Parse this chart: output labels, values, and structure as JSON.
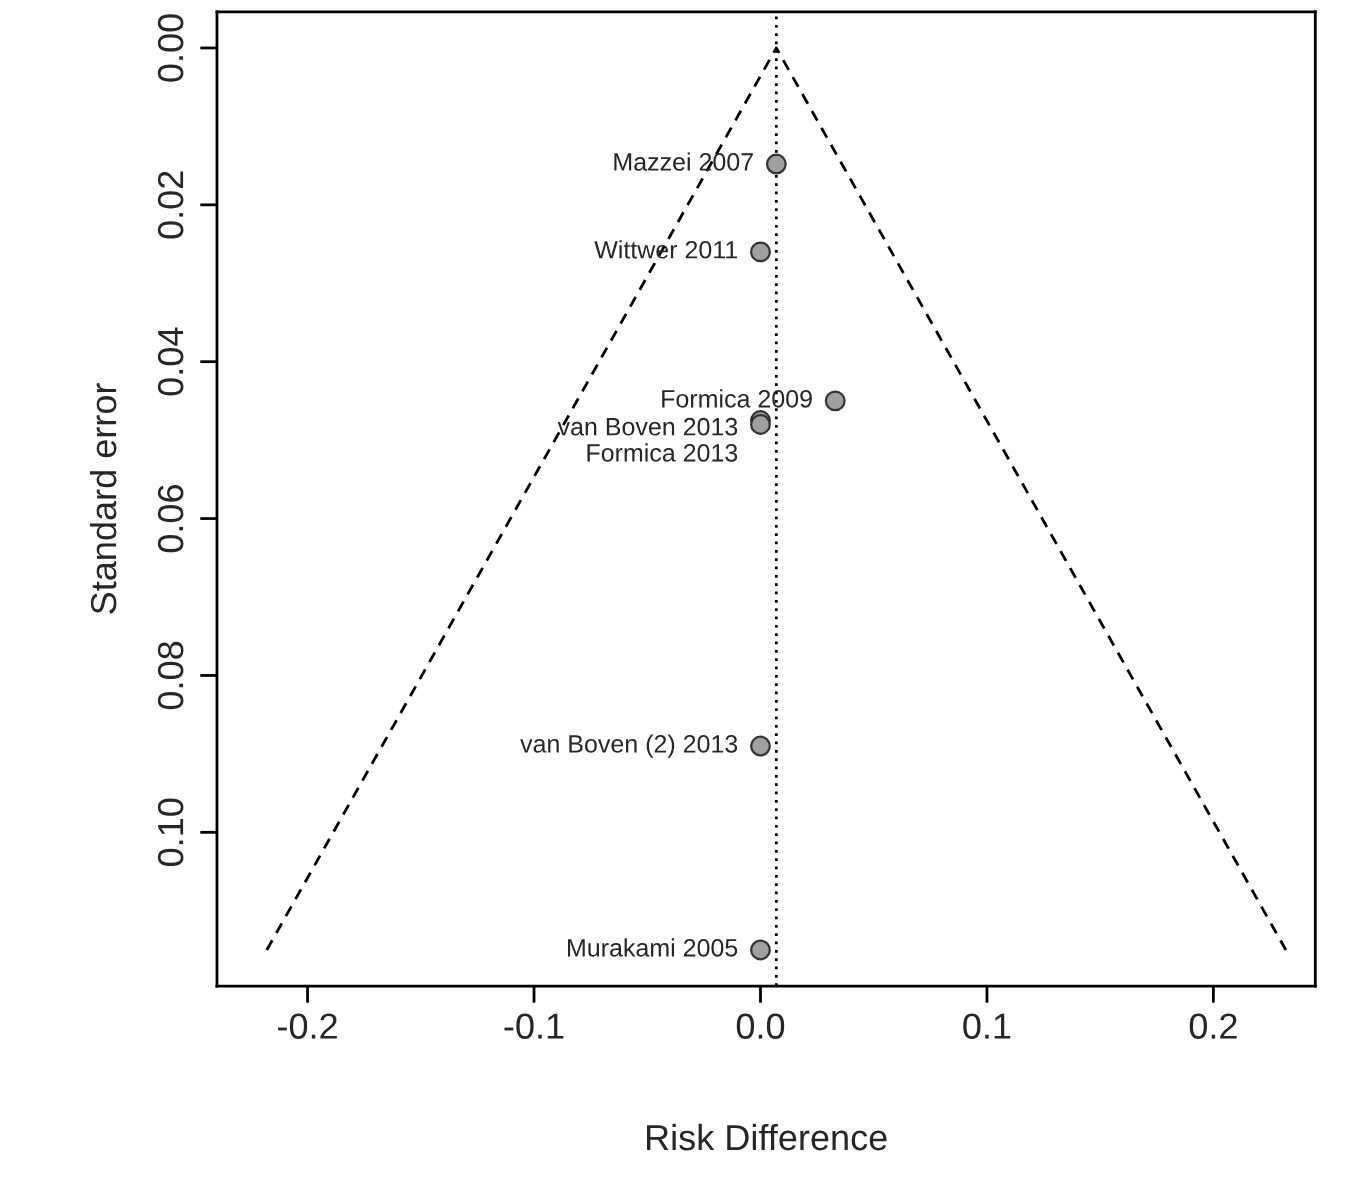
{
  "chart_data": {
    "type": "scatter",
    "xlabel": "Risk Difference",
    "ylabel": "Standard error",
    "series": [
      {
        "color": "#a0a0a0",
        "marker": "circle",
        "x": [
          0.007,
          0.0,
          0.033,
          0.0,
          0.0,
          0.0,
          0.0
        ],
        "values": [
          0.0148,
          0.026,
          0.045,
          0.0475,
          0.048,
          0.089,
          0.115
        ]
      },
      {
        "type": "line",
        "color": "#000000",
        "line_style": "dashed",
        "marker": "none",
        "x": [
          -0.218,
          0.007,
          0.232
        ],
        "values": [
          0.115,
          0.0,
          0.115
        ]
      }
    ],
    "ref_lines": [
      {
        "axis": "x",
        "value": 0.007,
        "line_style": "dotted",
        "color": "#000000"
      }
    ],
    "annotations": [
      {
        "text": "Mazzei 2007",
        "x": 0.007,
        "y": 0.0148
      },
      {
        "text": "Wittwer 2011",
        "x": 0.0,
        "y": 0.026
      },
      {
        "text": "Formica 2009",
        "x": 0.033,
        "y": 0.045
      },
      {
        "text": "van Boven 2013",
        "x": 0.0,
        "y": 0.0475
      },
      {
        "text": "Formica 2013",
        "x": 0.0,
        "y": 0.048
      },
      {
        "text": "van Boven (2) 2013",
        "x": 0.0,
        "y": 0.089
      },
      {
        "text": "Murakami 2005",
        "x": 0.0,
        "y": 0.115
      }
    ],
    "xlim": [
      -0.24,
      0.245
    ],
    "ylim": [
      0.1196,
      -0.0046
    ],
    "xticks": [
      {
        "value": -0.2,
        "label": "-0.2"
      },
      {
        "value": -0.1,
        "label": "-0.1"
      },
      {
        "value": 0.0,
        "label": "0.0"
      },
      {
        "value": 0.1,
        "label": "0.1"
      },
      {
        "value": 0.2,
        "label": "0.2"
      }
    ],
    "yticks": [
      {
        "value": 0.0,
        "label": "0.00"
      },
      {
        "value": 0.02,
        "label": "0.02"
      },
      {
        "value": 0.04,
        "label": "0.04"
      },
      {
        "value": 0.06,
        "label": "0.06"
      },
      {
        "value": 0.08,
        "label": "0.08"
      },
      {
        "value": 0.1,
        "label": "0.10"
      }
    ],
    "grid": false,
    "legend": false
  }
}
